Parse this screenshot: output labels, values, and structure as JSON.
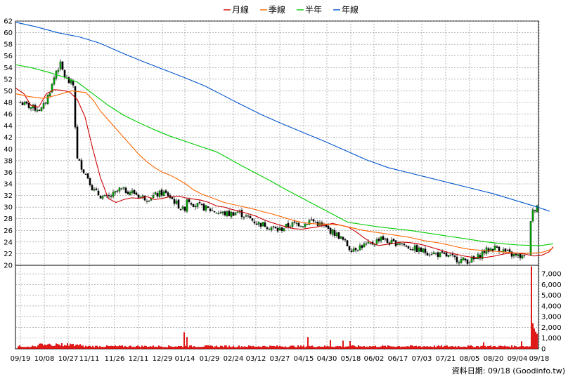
{
  "chart_data": [
    {
      "type": "candlestick",
      "legend": [
        {
          "name": "月線",
          "color": "#cc0000"
        },
        {
          "name": "季線",
          "color": "#ff6600"
        },
        {
          "name": "半年",
          "color": "#00cc00"
        },
        {
          "name": "年線",
          "color": "#0055cc"
        }
      ],
      "legend_position": "top-center",
      "grid": true,
      "x_tick_labels": [
        "09/19",
        "10/08",
        "10/27",
        "11/11",
        "11/26",
        "12/11",
        "12/29",
        "01/14",
        "01/29",
        "02/24",
        "03/12",
        "03/27",
        "04/15",
        "04/30",
        "05/18",
        "06/02",
        "06/17",
        "07/03",
        "07/21",
        "08/05",
        "08/20",
        "09/04",
        "09/18"
      ],
      "y_ticks": [
        20,
        22,
        24,
        26,
        28,
        30,
        32,
        34,
        36,
        38,
        40,
        42,
        44,
        46,
        48,
        50,
        52,
        54,
        56,
        58,
        60,
        62
      ],
      "ylim": [
        20,
        62
      ],
      "up_color": "#00a000",
      "down_color": "#000000",
      "series": [
        {
          "name": "月線",
          "color": "#cc0000",
          "values": [
            [
              0,
              50.5
            ],
            [
              12,
              49.5
            ],
            [
              22,
              47.5
            ],
            [
              33,
              47.2
            ],
            [
              44,
              49.5
            ],
            [
              55,
              50.2
            ],
            [
              66,
              50.1
            ],
            [
              77,
              49.8
            ],
            [
              88,
              48.5
            ],
            [
              99,
              45.5
            ],
            [
              110,
              40
            ],
            [
              121,
              35
            ],
            [
              132,
              31.5
            ],
            [
              143,
              30.8
            ],
            [
              154,
              31.3
            ],
            [
              165,
              31.6
            ],
            [
              176,
              31.5
            ],
            [
              187,
              31.8
            ],
            [
              198,
              31.3
            ],
            [
              209,
              31.5
            ],
            [
              220,
              31.8
            ],
            [
              231,
              31.9
            ],
            [
              242,
              31.6
            ],
            [
              253,
              31.4
            ],
            [
              264,
              31.2
            ],
            [
              275,
              30.8
            ],
            [
              286,
              30.2
            ],
            [
              297,
              30
            ],
            [
              308,
              29.6
            ],
            [
              319,
              29.3
            ],
            [
              330,
              28.9
            ],
            [
              341,
              28.5
            ],
            [
              352,
              27.9
            ],
            [
              363,
              27.4
            ],
            [
              374,
              27
            ],
            [
              385,
              26.6
            ],
            [
              396,
              26.3
            ],
            [
              407,
              26.2
            ],
            [
              418,
              26.4
            ],
            [
              429,
              26.6
            ],
            [
              440,
              26.9
            ],
            [
              451,
              27.2
            ],
            [
              462,
              26.9
            ],
            [
              473,
              26.6
            ],
            [
              484,
              25.8
            ],
            [
              495,
              24.8
            ],
            [
              506,
              23.9
            ],
            [
              517,
              23.4
            ],
            [
              528,
              23.6
            ],
            [
              539,
              23.8
            ],
            [
              550,
              24
            ],
            [
              561,
              23.9
            ],
            [
              572,
              23.7
            ],
            [
              583,
              23.4
            ],
            [
              594,
              23
            ],
            [
              605,
              22.6
            ],
            [
              616,
              22.2
            ],
            [
              627,
              21.9
            ],
            [
              638,
              21.6
            ],
            [
              649,
              21.4
            ],
            [
              660,
              21.3
            ],
            [
              671,
              21.4
            ],
            [
              682,
              21.6
            ],
            [
              693,
              21.9
            ],
            [
              704,
              22.1
            ],
            [
              715,
              22.1
            ],
            [
              726,
              21.9
            ],
            [
              737,
              21.6
            ],
            [
              748,
              21.7
            ],
            [
              759,
              22.3
            ],
            [
              765,
              23.2
            ]
          ]
        },
        {
          "name": "季線",
          "color": "#ff6600",
          "values": [
            [
              0,
              49.5
            ],
            [
              20,
              49
            ],
            [
              40,
              48.7
            ],
            [
              60,
              49.3
            ],
            [
              80,
              50
            ],
            [
              100,
              49.7
            ],
            [
              110,
              48.5
            ],
            [
              121,
              46.5
            ],
            [
              132,
              45
            ],
            [
              143,
              43.5
            ],
            [
              154,
              42
            ],
            [
              165,
              40.5
            ],
            [
              176,
              39
            ],
            [
              187,
              37.8
            ],
            [
              198,
              36.8
            ],
            [
              209,
              36
            ],
            [
              220,
              35.5
            ],
            [
              231,
              34.8
            ],
            [
              242,
              34
            ],
            [
              253,
              33
            ],
            [
              264,
              32.3
            ],
            [
              275,
              31.8
            ],
            [
              286,
              31.3
            ],
            [
              297,
              30.8
            ],
            [
              308,
              30.5
            ],
            [
              319,
              30.2
            ],
            [
              330,
              29.9
            ],
            [
              341,
              29.6
            ],
            [
              352,
              29.2
            ],
            [
              363,
              28.9
            ],
            [
              374,
              28.5
            ],
            [
              385,
              28.1
            ],
            [
              396,
              27.7
            ],
            [
              407,
              27.4
            ],
            [
              418,
              27.2
            ],
            [
              429,
              27.1
            ],
            [
              440,
              27.1
            ],
            [
              451,
              27
            ],
            [
              462,
              26.9
            ],
            [
              473,
              26.6
            ],
            [
              484,
              26.3
            ],
            [
              495,
              26
            ],
            [
              506,
              25.8
            ],
            [
              517,
              25.6
            ],
            [
              528,
              25.4
            ],
            [
              539,
              25.2
            ],
            [
              550,
              25
            ],
            [
              561,
              24.8
            ],
            [
              572,
              24.5
            ],
            [
              583,
              24.2
            ],
            [
              594,
              24
            ],
            [
              605,
              23.8
            ],
            [
              616,
              23.5
            ],
            [
              627,
              23.2
            ],
            [
              638,
              22.9
            ],
            [
              649,
              22.7
            ],
            [
              660,
              22.6
            ],
            [
              671,
              22.5
            ],
            [
              682,
              22.4
            ],
            [
              693,
              22.3
            ],
            [
              704,
              22.2
            ],
            [
              715,
              22.1
            ],
            [
              726,
              22.1
            ],
            [
              737,
              22.1
            ],
            [
              748,
              22.2
            ],
            [
              759,
              22.6
            ],
            [
              765,
              23
            ]
          ]
        },
        {
          "name": "半年",
          "color": "#00cc00",
          "values": [
            [
              0,
              54.5
            ],
            [
              22,
              54
            ],
            [
              44,
              53.3
            ],
            [
              66,
              52.5
            ],
            [
              88,
              51.5
            ],
            [
              110,
              49.5
            ],
            [
              132,
              47.5
            ],
            [
              154,
              45.8
            ],
            [
              176,
              44.5
            ],
            [
              198,
              43.3
            ],
            [
              220,
              42.2
            ],
            [
              242,
              41.3
            ],
            [
              264,
              40.4
            ],
            [
              286,
              39.5
            ],
            [
              297,
              38.8
            ],
            [
              319,
              37.3
            ],
            [
              341,
              35.9
            ],
            [
              363,
              34.5
            ],
            [
              385,
              33
            ],
            [
              407,
              31.6
            ],
            [
              429,
              30.2
            ],
            [
              451,
              28.8
            ],
            [
              473,
              27.4
            ],
            [
              495,
              27
            ],
            [
              517,
              26.6
            ],
            [
              539,
              26.3
            ],
            [
              561,
              26
            ],
            [
              583,
              25.6
            ],
            [
              605,
              25.2
            ],
            [
              627,
              24.8
            ],
            [
              649,
              24.4
            ],
            [
              671,
              24
            ],
            [
              693,
              23.7
            ],
            [
              715,
              23.5
            ],
            [
              737,
              23.4
            ],
            [
              748,
              23.4
            ],
            [
              765,
              23.7
            ]
          ]
        },
        {
          "name": "年線",
          "color": "#0055cc",
          "values": [
            [
              0,
              61.8
            ],
            [
              30,
              61
            ],
            [
              60,
              60
            ],
            [
              90,
              59.3
            ],
            [
              120,
              58.2
            ],
            [
              150,
              56.6
            ],
            [
              180,
              55.1
            ],
            [
              210,
              53.7
            ],
            [
              240,
              52.3
            ],
            [
              270,
              50.8
            ],
            [
              291,
              49.5
            ],
            [
              320,
              47.7
            ],
            [
              350,
              45.9
            ],
            [
              380,
              44.3
            ],
            [
              410,
              42.8
            ],
            [
              440,
              41.3
            ],
            [
              470,
              39.7
            ],
            [
              500,
              38.1
            ],
            [
              530,
              36.8
            ],
            [
              560,
              35.9
            ],
            [
              590,
              35
            ],
            [
              620,
              34.1
            ],
            [
              650,
              33.2
            ],
            [
              680,
              32.3
            ],
            [
              710,
              31.2
            ],
            [
              740,
              30.1
            ],
            [
              760,
              29.3
            ]
          ]
        }
      ]
    },
    {
      "type": "bar",
      "y_ticks": [
        "0",
        "1,000",
        "2,000",
        "3,000",
        "4,000",
        "5,000",
        "6,000",
        "7,000"
      ],
      "ylim": [
        0,
        7800
      ],
      "color": "#dd0000"
    }
  ],
  "footer_label": "資料日期: 09/18 (Goodinfo.tw)"
}
